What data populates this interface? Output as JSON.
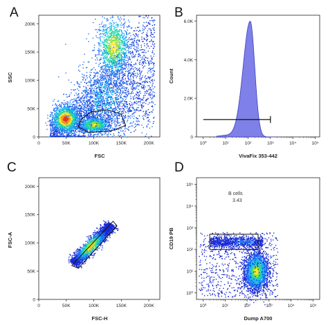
{
  "chart_data": [
    {
      "panel": "A",
      "type": "scatter",
      "xlabel": "FSC",
      "ylabel": "SSC",
      "xticks": [
        "0",
        "50K",
        "100K",
        "150K",
        "200K"
      ],
      "yticks": [
        "0",
        "50K",
        "100K",
        "150K",
        "200K"
      ],
      "xlim": [
        0,
        220000
      ],
      "ylim": [
        0,
        215000
      ],
      "populations": [
        {
          "name": "",
          "cx": 48000,
          "cy": 32000,
          "sx": 12000,
          "sy": 12000,
          "level": "hot"
        },
        {
          "name": "",
          "cx": 100000,
          "cy": 22000,
          "sx": 13000,
          "sy": 6000,
          "level": "warm"
        },
        {
          "name": "",
          "cx": 135000,
          "cy": 160000,
          "sx": 14000,
          "sy": 25000,
          "level": "warm"
        },
        {
          "name": "",
          "cx": 118000,
          "cy": 70000,
          "sx": 28000,
          "sy": 35000,
          "level": "low"
        }
      ],
      "gate": [
        [
          72000,
          18000
        ],
        [
          90000,
          8000
        ],
        [
          130000,
          10000
        ],
        [
          158000,
          20000
        ],
        [
          150000,
          40000
        ],
        [
          125000,
          48000
        ],
        [
          95000,
          44000
        ],
        [
          78000,
          32000
        ]
      ]
    },
    {
      "panel": "B",
      "type": "area",
      "xlabel": "VivaFix 353-442",
      "ylabel": "Count",
      "xticks": [
        "10⁰",
        "10¹",
        "10²",
        "10³",
        "10⁴",
        "10⁵"
      ],
      "yticks": [
        "0",
        "2.0K",
        "4.0K",
        "6.0K"
      ],
      "xscale": "log",
      "ylim": [
        0,
        6300
      ],
      "peak": {
        "x_log10": 2.1,
        "y": 6000
      },
      "gate_range": {
        "x_min": "10⁰",
        "x_max": "10³",
        "y": 900
      }
    },
    {
      "panel": "C",
      "type": "scatter",
      "xlabel": "FSC-H",
      "ylabel": "FSC-A",
      "xticks": [
        "0",
        "50K",
        "100K",
        "150K",
        "200K"
      ],
      "yticks": [
        "0",
        "50K",
        "100K",
        "150K",
        "200K"
      ],
      "xlim": [
        0,
        220000
      ],
      "ylim": [
        0,
        215000
      ],
      "gate": [
        [
          60000,
          60000
        ],
        [
          72000,
          55000
        ],
        [
          142000,
          130000
        ],
        [
          135000,
          138000
        ]
      ]
    },
    {
      "panel": "D",
      "type": "scatter",
      "xlabel": "Dump A700",
      "ylabel": "CD19 PB",
      "xticks": [
        "10⁰",
        "10¹",
        "10²",
        "10³",
        "10⁴",
        "10⁵"
      ],
      "yticks": [
        "10⁰",
        "10¹",
        "10²",
        "10³",
        "10⁴",
        "10⁵"
      ],
      "xscale": "log",
      "yscale": "log",
      "gate_label": "B cells",
      "gate_value": "3.43",
      "gate": {
        "x_min": 0.3,
        "x_max": 2.5,
        "y_min": 2.0,
        "y_max": 2.7
      }
    }
  ]
}
